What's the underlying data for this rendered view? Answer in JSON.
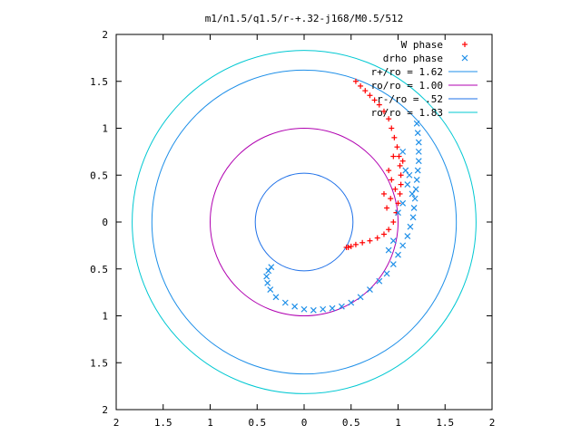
{
  "chart_data": {
    "type": "scatter",
    "title": "m1/n1.5/q1.5/r-+.32-j168/M0.5/512",
    "xlabel": "",
    "ylabel": "",
    "xlim": [
      -2,
      2
    ],
    "ylim": [
      -2,
      2
    ],
    "grid": false,
    "legend_position": "top-right",
    "x_ticks": [
      "2",
      "1.5",
      "1",
      "0.5",
      "0",
      "0.5",
      "1",
      "1.5",
      "2"
    ],
    "y_ticks": [
      "2",
      "1.5",
      "1",
      "0.5",
      "0",
      "0.5",
      "1",
      "1.5",
      "2"
    ],
    "series": [
      {
        "name": "W phase",
        "marker": "+",
        "color": "#ff0000",
        "points": [
          [
            0.55,
            1.5
          ],
          [
            0.6,
            1.45
          ],
          [
            0.65,
            1.4
          ],
          [
            0.7,
            1.35
          ],
          [
            0.75,
            1.3
          ],
          [
            0.8,
            1.25
          ],
          [
            0.85,
            1.18
          ],
          [
            0.9,
            1.1
          ],
          [
            0.93,
            1.0
          ],
          [
            0.96,
            0.9
          ],
          [
            0.99,
            0.8
          ],
          [
            1.01,
            0.7
          ],
          [
            1.02,
            0.6
          ],
          [
            1.03,
            0.5
          ],
          [
            1.03,
            0.4
          ],
          [
            1.02,
            0.3
          ],
          [
            1.0,
            0.2
          ],
          [
            0.98,
            0.1
          ],
          [
            0.95,
            0.0
          ],
          [
            0.9,
            -0.08
          ],
          [
            0.85,
            -0.13
          ],
          [
            0.78,
            -0.17
          ],
          [
            0.7,
            -0.2
          ],
          [
            0.62,
            -0.22
          ],
          [
            0.55,
            -0.24
          ],
          [
            0.5,
            -0.26
          ],
          [
            0.47,
            -0.27
          ],
          [
            0.45,
            -0.27
          ],
          [
            0.9,
            0.55
          ],
          [
            0.95,
            0.7
          ],
          [
            1.05,
            0.65
          ],
          [
            0.85,
            0.3
          ],
          [
            0.92,
            0.25
          ],
          [
            0.88,
            0.15
          ],
          [
            0.93,
            0.45
          ],
          [
            0.97,
            0.35
          ]
        ]
      },
      {
        "name": "drho phase",
        "marker": "x",
        "color": "#1e8fe8",
        "points": [
          [
            1.2,
            1.05
          ],
          [
            1.21,
            0.95
          ],
          [
            1.22,
            0.85
          ],
          [
            1.22,
            0.75
          ],
          [
            1.22,
            0.65
          ],
          [
            1.21,
            0.55
          ],
          [
            1.2,
            0.45
          ],
          [
            1.19,
            0.35
          ],
          [
            1.18,
            0.25
          ],
          [
            1.17,
            0.15
          ],
          [
            1.16,
            0.05
          ],
          [
            1.13,
            -0.05
          ],
          [
            1.1,
            -0.15
          ],
          [
            1.05,
            -0.25
          ],
          [
            1.0,
            -0.35
          ],
          [
            0.95,
            -0.45
          ],
          [
            0.88,
            -0.55
          ],
          [
            0.8,
            -0.63
          ],
          [
            0.7,
            -0.72
          ],
          [
            0.6,
            -0.8
          ],
          [
            0.5,
            -0.86
          ],
          [
            0.4,
            -0.9
          ],
          [
            0.3,
            -0.92
          ],
          [
            0.2,
            -0.93
          ],
          [
            0.1,
            -0.94
          ],
          [
            0.0,
            -0.93
          ],
          [
            -0.1,
            -0.9
          ],
          [
            -0.2,
            -0.86
          ],
          [
            -0.3,
            -0.8
          ],
          [
            -0.36,
            -0.72
          ],
          [
            -0.39,
            -0.65
          ],
          [
            -0.4,
            -0.58
          ],
          [
            -0.38,
            -0.52
          ],
          [
            -0.35,
            -0.48
          ],
          [
            1.05,
            0.75
          ],
          [
            1.08,
            0.55
          ],
          [
            1.12,
            0.5
          ],
          [
            1.1,
            0.4
          ],
          [
            1.15,
            0.3
          ],
          [
            1.0,
            0.1
          ],
          [
            1.05,
            0.2
          ],
          [
            0.95,
            -0.2
          ],
          [
            0.9,
            -0.3
          ]
        ]
      },
      {
        "name": "r+/ro = 1.62",
        "shape": "circle",
        "radius": 1.62,
        "color": "#1e8fe8"
      },
      {
        "name": "ro/ro = 1.00",
        "shape": "circle",
        "radius": 1.0,
        "color": "#b000b0"
      },
      {
        "name": "r-/ro = .52",
        "shape": "circle",
        "radius": 0.52,
        "color": "#1e70e8"
      },
      {
        "name": "ro/ro = 1.83",
        "shape": "circle",
        "radius": 1.83,
        "color": "#00c8d2"
      }
    ]
  }
}
